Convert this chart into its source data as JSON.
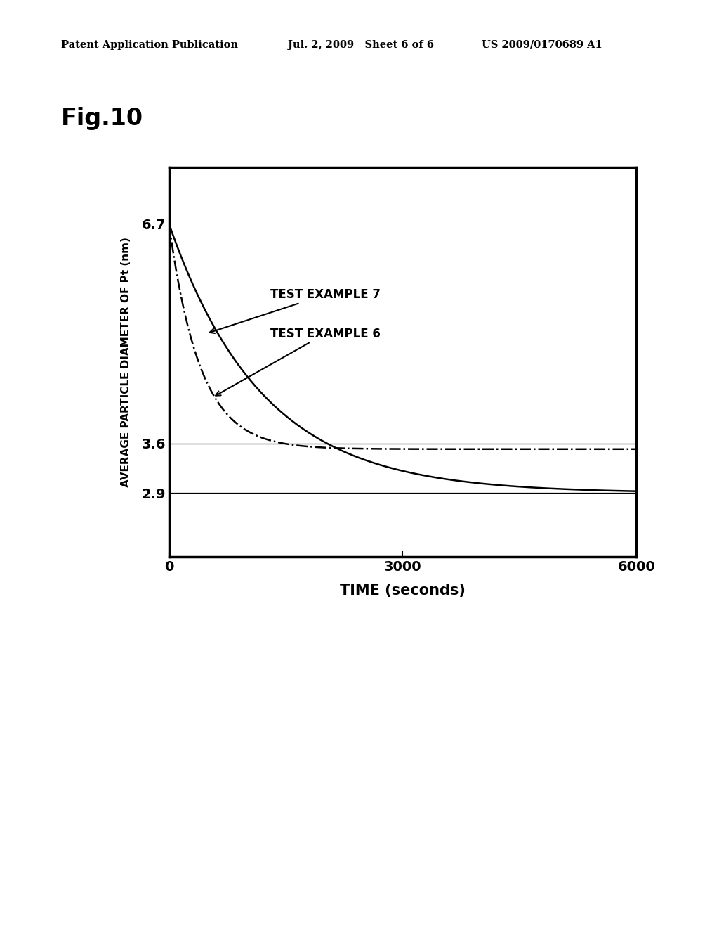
{
  "fig_label": "Fig.10",
  "header_left": "Patent Application Publication",
  "header_mid": "Jul. 2, 2009   Sheet 6 of 6",
  "header_right": "US 2009/0170689 A1",
  "xlabel": "TIME (seconds)",
  "ylabel": "AVERAGE PARTICLE DIAMETER OF Pt (nm)",
  "xlim": [
    0,
    6000
  ],
  "ylim": [
    2.0,
    7.5
  ],
  "xticks": [
    0,
    3000,
    6000
  ],
  "yticks": [
    2.9,
    3.6,
    6.7
  ],
  "background_color": "#ffffff",
  "line_color": "#000000",
  "annotation1": "TEST EXAMPLE 7",
  "annotation2": "TEST EXAMPLE 6",
  "tau7": 1200,
  "asymptote7": 2.9,
  "tau6": 400,
  "asymptote6": 3.52
}
